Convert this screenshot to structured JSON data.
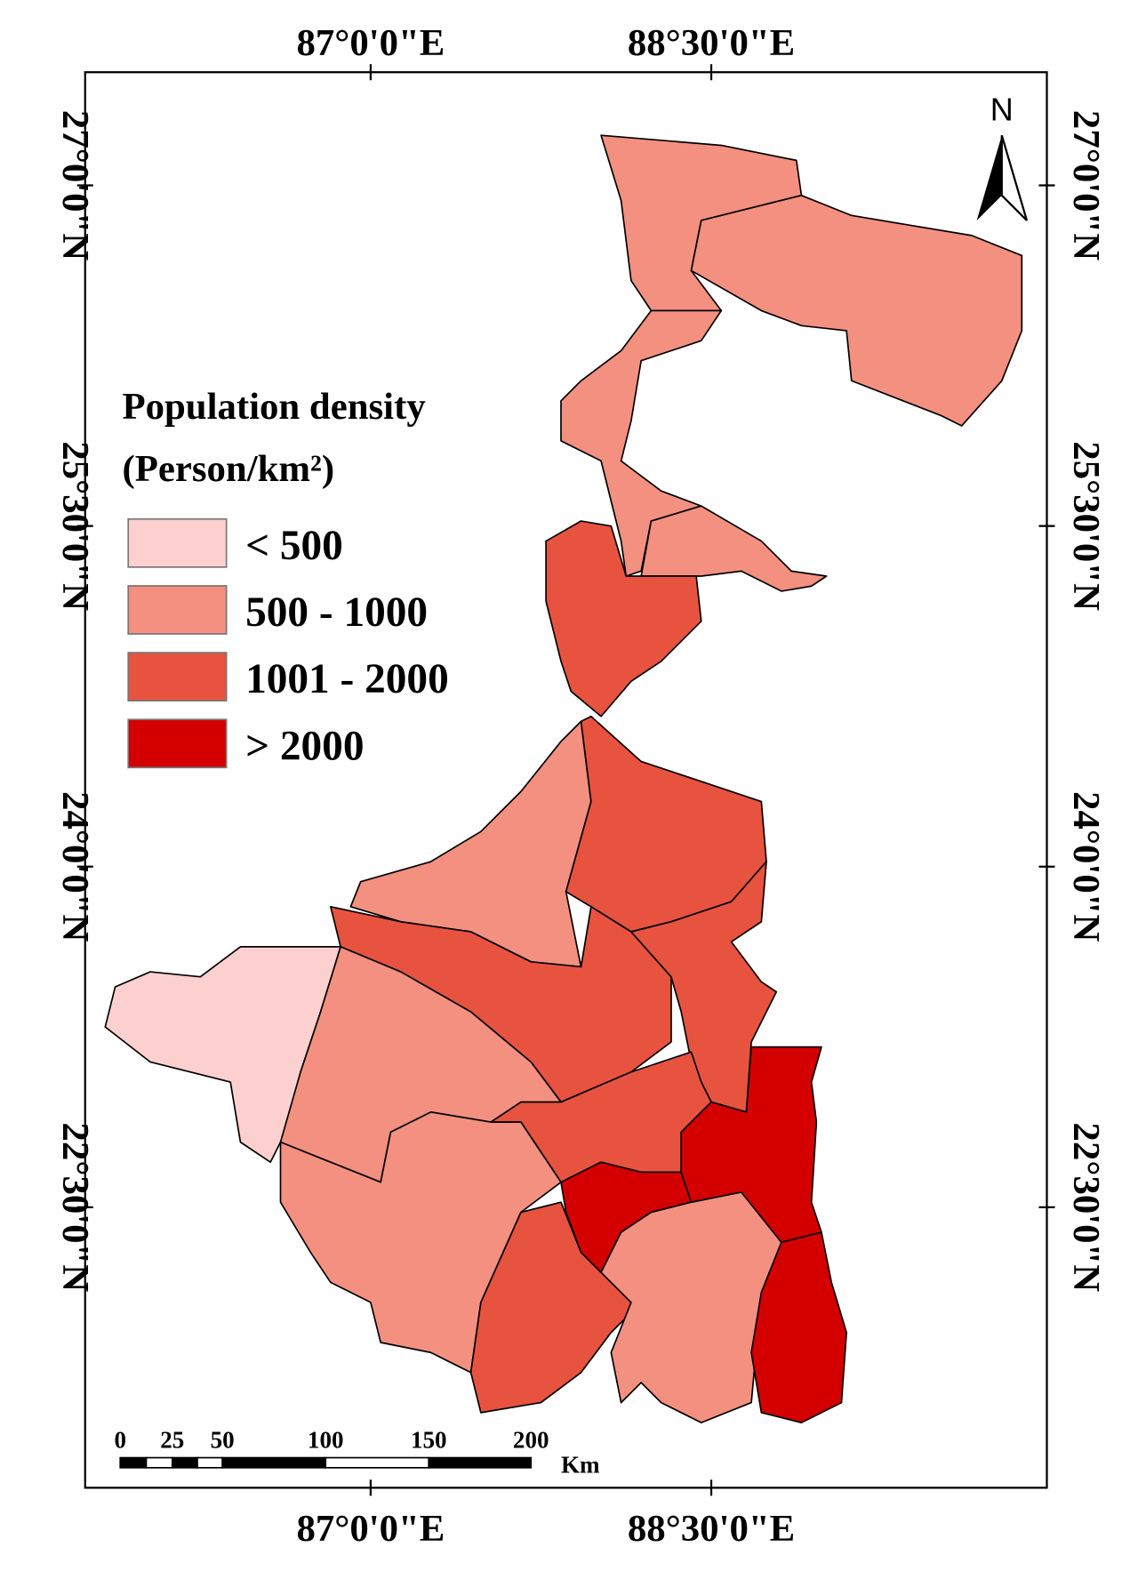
{
  "graticule": {
    "longitudes": [
      "87°0'0\"E",
      "88°30'0\"E"
    ],
    "latitudes": [
      "27°0'0\"N",
      "25°30'0\"N",
      "24°0'0\"N",
      "22°30'0\"N"
    ]
  },
  "north_arrow": "N",
  "legend": {
    "title": "Population density",
    "unit": "(Person/km²)",
    "items": [
      {
        "label": "< 500",
        "color": "#fdd0d0"
      },
      {
        "label": "500 - 1000",
        "color": "#f4907f"
      },
      {
        "label": "1001 - 2000",
        "color": "#e8533f"
      },
      {
        "label": "> 2000",
        "color": "#d40000"
      }
    ]
  },
  "scale_bar": {
    "ticks": [
      "0",
      "25",
      "50",
      "100",
      "150",
      "200"
    ],
    "unit": "Km"
  }
}
